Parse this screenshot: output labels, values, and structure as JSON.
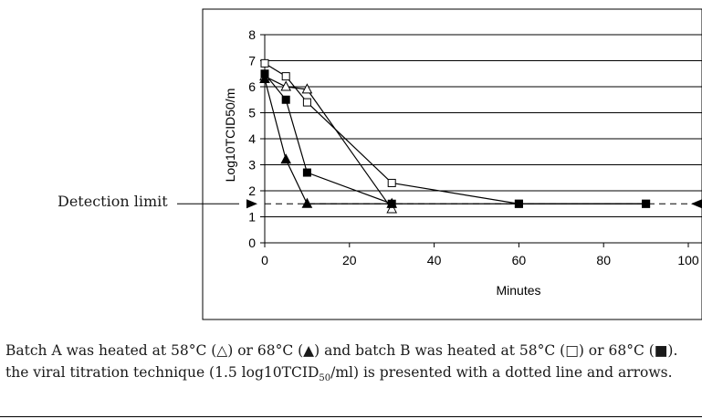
{
  "chart_data": {
    "type": "line",
    "title": "",
    "xlabel": "Minutes",
    "ylabel": "Log10TCID50/m",
    "xlim": [
      0,
      100
    ],
    "ylim": [
      0,
      8
    ],
    "xticks": [
      "0",
      "20",
      "40",
      "60",
      "80",
      "100"
    ],
    "yticks": [
      "0",
      "1",
      "2",
      "3",
      "4",
      "5",
      "6",
      "7",
      "8"
    ],
    "grid": "horizontal",
    "legend": "none",
    "detection_limit": {
      "label": "Detection limit",
      "value": 1.5,
      "style": "dashed line with arrow"
    },
    "series": [
      {
        "marker": "open-triangle",
        "x": [
          0,
          5,
          10,
          30
        ],
        "y": [
          6.4,
          6.0,
          5.9,
          1.3
        ]
      },
      {
        "marker": "filled-triangle",
        "x": [
          0,
          5,
          10,
          30
        ],
        "y": [
          6.3,
          3.2,
          1.5,
          1.5
        ]
      },
      {
        "marker": "open-square",
        "x": [
          0,
          5,
          10,
          30,
          60,
          90
        ],
        "y": [
          6.9,
          6.4,
          5.4,
          2.3,
          1.5,
          1.5
        ]
      },
      {
        "marker": "filled-square",
        "x": [
          0,
          5,
          10,
          30,
          60,
          90
        ],
        "y": [
          6.5,
          5.5,
          2.7,
          1.5,
          1.5,
          1.5
        ]
      }
    ]
  },
  "caption": {
    "line1": "Batch A was heated at 58°C (△) or 68°C (▲) and batch B was heated at 58°C (□) or 68°C (■).",
    "line2_pre": "the viral titration technique (1.5 log10TCID",
    "line2_sub": "50",
    "line2_post": "/ml) is presented with a dotted line and arrows."
  }
}
